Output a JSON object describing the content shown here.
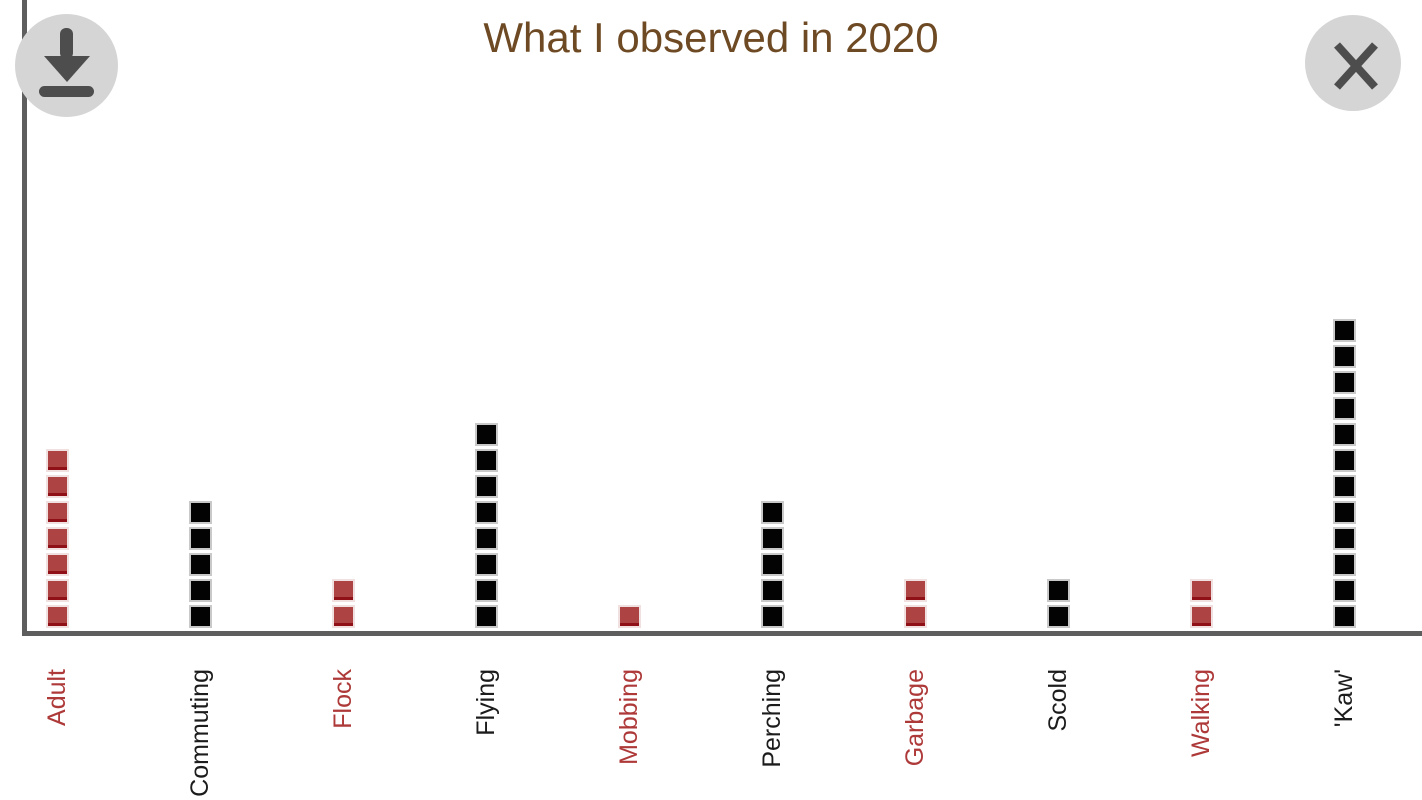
{
  "header": {
    "title": "What I observed in 2020",
    "buttons": {
      "download": {
        "icon": "download-icon"
      },
      "close": {
        "icon": "close-icon"
      }
    }
  },
  "chart_data": {
    "type": "bar",
    "variant": "pictograph-stacked-unit-squares",
    "title": "What I observed in 2020",
    "unit_per_square": 1,
    "categories": [
      "Adult",
      "Commuting",
      "Flock",
      "Flying",
      "Mobbing",
      "Perching",
      "Garbage",
      "Scold",
      "Walking",
      "'Kaw'"
    ],
    "values": [
      7,
      5,
      2,
      8,
      1,
      5,
      2,
      2,
      2,
      12
    ],
    "colors": [
      "red",
      "black",
      "red",
      "black",
      "red",
      "black",
      "red",
      "black",
      "red",
      "black"
    ],
    "label_colors": [
      "red",
      "black",
      "red",
      "black",
      "red",
      "black",
      "red",
      "black",
      "red",
      "black"
    ],
    "xlabel": "",
    "ylabel": "",
    "ylim": [
      0,
      12
    ],
    "grid": false,
    "legend": false,
    "x_label_rotation_deg": -90
  },
  "palette": {
    "red_square_fill": "#ad4343",
    "red_square_edge_dark": "#8f1016",
    "red_square_border": "#f0e0e0",
    "black_square_fill": "#030303",
    "black_square_border": "#c9c9c9",
    "label_red": "#ae3939",
    "label_black": "#1c1c1c",
    "title_brown": "#6e4a24",
    "axis_gray": "#5e5e5e",
    "button_circle_gray": "#d5d5d5",
    "button_icon_gray": "#4d4d4d"
  }
}
